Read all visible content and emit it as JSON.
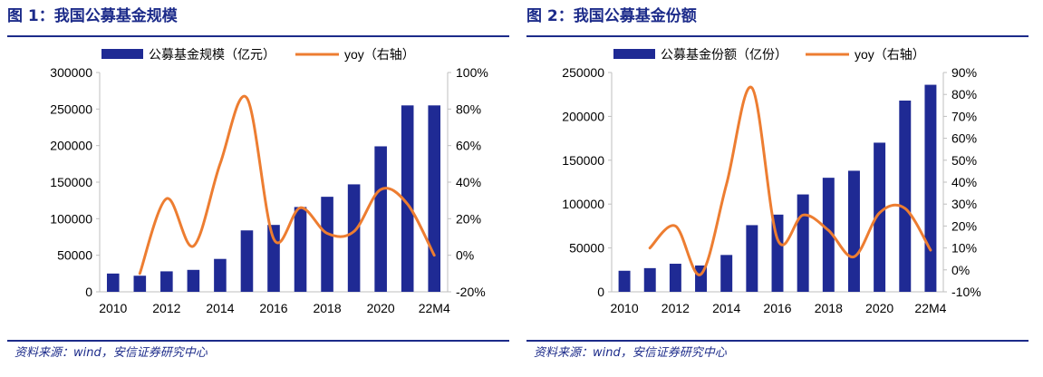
{
  "colors": {
    "bar": "#1f2a94",
    "line": "#ed7d31",
    "title": "#1c2b8a",
    "axis": "#bfbfbf",
    "text": "#000000"
  },
  "chart_data": [
    {
      "type": "bar",
      "title": "图 1：我国公募基金规模",
      "categories": [
        "2010",
        "2011",
        "2012",
        "2013",
        "2014",
        "2015",
        "2016",
        "2017",
        "2018",
        "2019",
        "2020",
        "2021",
        "22M4"
      ],
      "x_tick_labels": [
        "2010",
        "2012",
        "2014",
        "2016",
        "2018",
        "2020",
        "22M4"
      ],
      "series": [
        {
          "name": "公募基金规模（亿元）",
          "axis": "left",
          "kind": "bar",
          "values": [
            25000,
            22000,
            28000,
            30000,
            45000,
            84000,
            91500,
            116000,
            130000,
            147000,
            199000,
            255000,
            255000
          ]
        },
        {
          "name": "yoy（右轴）",
          "axis": "right",
          "kind": "line",
          "smooth": true,
          "values": [
            null,
            -10,
            31,
            5,
            50,
            86,
            9,
            26,
            12,
            13,
            36,
            28,
            0
          ]
        }
      ],
      "y_left": {
        "min": 0,
        "max": 300000,
        "step": 50000,
        "tick_labels": [
          "0",
          "50000",
          "100000",
          "150000",
          "200000",
          "250000",
          "300000"
        ]
      },
      "y_right": {
        "min": -20,
        "max": 100,
        "step": 20,
        "tick_labels": [
          "-20%",
          "0%",
          "20%",
          "40%",
          "60%",
          "80%",
          "100%"
        ]
      },
      "legend": "top",
      "grid": false,
      "source": "资料来源：wind，安信证券研究中心"
    },
    {
      "type": "bar",
      "title": "图 2：我国公募基金份额",
      "categories": [
        "2010",
        "2011",
        "2012",
        "2013",
        "2014",
        "2015",
        "2016",
        "2017",
        "2018",
        "2019",
        "2020",
        "2021",
        "22M4"
      ],
      "x_tick_labels": [
        "2010",
        "2012",
        "2014",
        "2016",
        "2018",
        "2020",
        "22M4"
      ],
      "series": [
        {
          "name": "公募基金份额（亿份）",
          "axis": "left",
          "kind": "bar",
          "values": [
            24000,
            27000,
            32000,
            30000,
            42000,
            76000,
            88000,
            111000,
            130000,
            138000,
            170000,
            218000,
            236000
          ]
        },
        {
          "name": "yoy（右轴）",
          "axis": "right",
          "kind": "line",
          "smooth": true,
          "values": [
            null,
            10,
            20,
            -2,
            39,
            83,
            14,
            25,
            18,
            6,
            26,
            28,
            9
          ]
        }
      ],
      "y_left": {
        "min": 0,
        "max": 250000,
        "step": 50000,
        "tick_labels": [
          "0",
          "50000",
          "100000",
          "150000",
          "200000",
          "250000"
        ]
      },
      "y_right": {
        "min": -10,
        "max": 90,
        "step": 10,
        "tick_labels": [
          "-10%",
          "0%",
          "10%",
          "20%",
          "30%",
          "40%",
          "50%",
          "60%",
          "70%",
          "80%",
          "90%"
        ]
      },
      "legend": "top",
      "grid": false,
      "source": "资料来源：wind，安信证券研究中心"
    }
  ]
}
